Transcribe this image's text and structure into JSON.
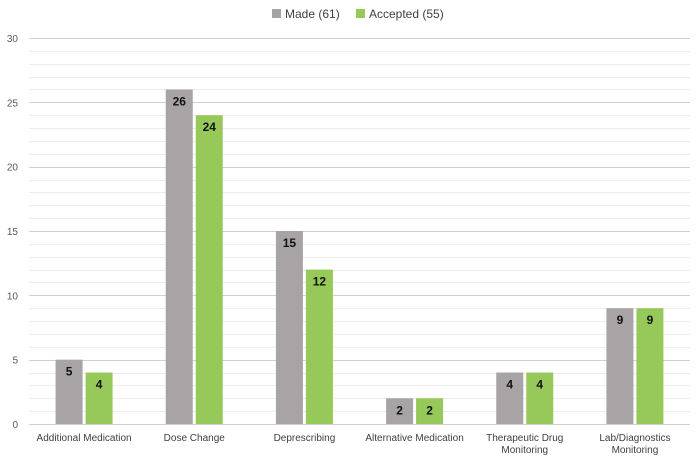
{
  "chart_data": {
    "type": "bar",
    "categories": [
      [
        "Additional Medication"
      ],
      [
        "Dose Change"
      ],
      [
        "Deprescribing"
      ],
      [
        "Alternative Medication"
      ],
      [
        "Therapeutic Drug",
        "Monitoring"
      ],
      [
        "Lab/Diagnostics",
        "Monitoring"
      ]
    ],
    "series": [
      {
        "name": "Made (61)",
        "values": [
          5,
          26,
          15,
          2,
          4,
          9
        ],
        "color": "#a8a4a5"
      },
      {
        "name": "Accepted (55)",
        "values": [
          4,
          24,
          12,
          2,
          4,
          9
        ],
        "color": "#96c95a"
      }
    ],
    "yticks": [
      "0",
      "5",
      "10",
      "15",
      "20",
      "25",
      "30"
    ],
    "ylim": [
      0,
      30
    ],
    "grid": true,
    "legend_position": "top-center",
    "data_labels": true
  }
}
